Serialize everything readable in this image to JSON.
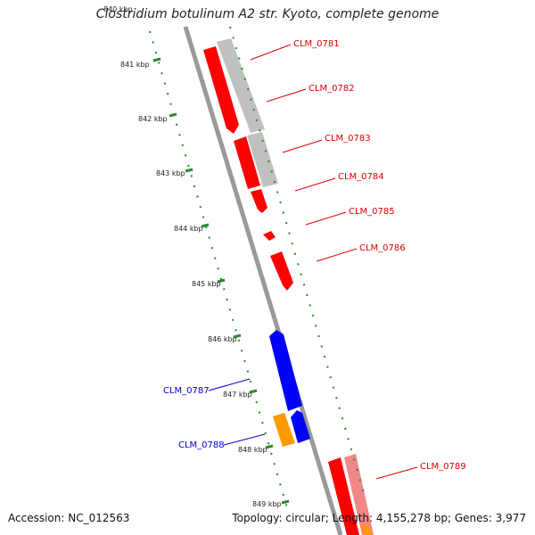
{
  "title": "Clostridium botulinum A2 str. Kyoto, complete genome",
  "accession_text": "Accession: NC_012563",
  "summary_text": "Topology: circular; Length: 4,155,278 bp; Genes: 3,977",
  "top_cut_label": "840 kbp",
  "scale_labels": [
    "841 kbp",
    "842 kbp",
    "843 kbp",
    "844 kbp",
    "845 kbp",
    "846 kbp",
    "847 kbp",
    "848 kbp",
    "849 kbp"
  ],
  "genes": [
    {
      "name": "CLM_0781",
      "color": "#dd0000",
      "side": "right"
    },
    {
      "name": "CLM_0782",
      "color": "#dd0000",
      "side": "right"
    },
    {
      "name": "CLM_0783",
      "color": "#dd0000",
      "side": "right"
    },
    {
      "name": "CLM_0784",
      "color": "#dd0000",
      "side": "right"
    },
    {
      "name": "CLM_0785",
      "color": "#dd0000",
      "side": "right"
    },
    {
      "name": "CLM_0786",
      "color": "#dd0000",
      "side": "right"
    },
    {
      "name": "CLM_0787",
      "color": "#0000cc",
      "side": "left"
    },
    {
      "name": "CLM_0788",
      "color": "#0000cc",
      "side": "left"
    },
    {
      "name": "CLM_0789",
      "color": "#dd0000",
      "side": "right"
    }
  ],
  "colors": {
    "forward_cds": "#ff0000",
    "reverse_cds": "#0000ff",
    "hit_gray": "#b8b8b8",
    "hit_pink": "#f08080",
    "orange": "#ff9900",
    "backbone": "#888888",
    "scale_green": "#2a8a2a"
  }
}
